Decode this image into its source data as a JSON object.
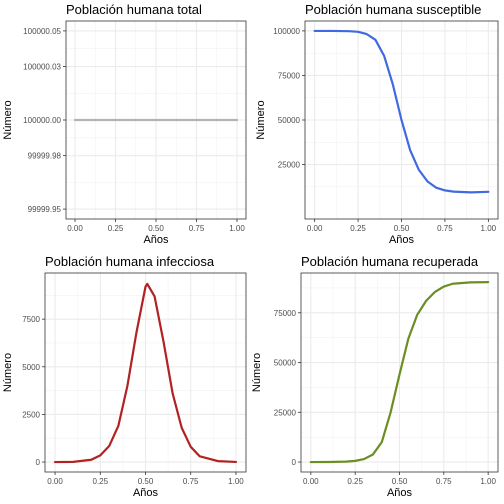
{
  "chart_data": [
    {
      "type": "line",
      "title": "Población humana total",
      "xlabel": "Años",
      "ylabel": "Número",
      "xlim": [
        0,
        1
      ],
      "ylim": [
        99999.95,
        100000.05
      ],
      "xticks": [
        "0.00",
        "0.25",
        "0.50",
        "0.75",
        "1.00"
      ],
      "yticks": [
        "99999.95",
        "99999.98",
        "100000.00",
        "100000.03",
        "100000.05"
      ],
      "color": "#b3b3b3",
      "grid": true,
      "series": [
        {
          "x": [
            0,
            0.25,
            0.5,
            0.75,
            1
          ],
          "y": [
            100000,
            100000,
            100000,
            100000,
            100000
          ]
        }
      ]
    },
    {
      "type": "line",
      "title": "Población humana susceptible",
      "xlabel": "Años",
      "ylabel": "Número",
      "xlim": [
        0,
        1
      ],
      "ylim": [
        0,
        100000
      ],
      "xticks": [
        "0.00",
        "0.25",
        "0.50",
        "0.75",
        "1.00"
      ],
      "yticks": [
        "25000",
        "50000",
        "75000",
        "100000"
      ],
      "color": "#4169e1",
      "grid": true,
      "series": [
        {
          "x": [
            0,
            0.1,
            0.2,
            0.25,
            0.3,
            0.35,
            0.4,
            0.45,
            0.5,
            0.55,
            0.6,
            0.65,
            0.7,
            0.75,
            0.8,
            0.9,
            1.0
          ],
          "y": [
            99990,
            99980,
            99850,
            99500,
            98200,
            95000,
            86000,
            70000,
            50000,
            33000,
            22000,
            15500,
            12000,
            10500,
            9800,
            9400,
            9700
          ]
        }
      ]
    },
    {
      "type": "line",
      "title": "Población humana infecciosa",
      "xlabel": "Años",
      "ylabel": "Número",
      "xlim": [
        0,
        1
      ],
      "ylim": [
        0,
        9400
      ],
      "xticks": [
        "0.00",
        "0.25",
        "0.50",
        "0.75",
        "1.00"
      ],
      "yticks": [
        "0",
        "2500",
        "5000",
        "7500"
      ],
      "color": "#b22222",
      "grid": true,
      "series": [
        {
          "x": [
            0,
            0.1,
            0.2,
            0.25,
            0.3,
            0.35,
            0.4,
            0.45,
            0.5,
            0.51,
            0.55,
            0.6,
            0.65,
            0.7,
            0.75,
            0.8,
            0.9,
            1.0
          ],
          "y": [
            0,
            10,
            120,
            350,
            850,
            1900,
            4000,
            6800,
            9200,
            9350,
            8700,
            6300,
            3600,
            1800,
            800,
            300,
            50,
            5
          ]
        }
      ]
    },
    {
      "type": "line",
      "title": "Población humana recuperada",
      "xlabel": "Años",
      "ylabel": "Número",
      "xlim": [
        0,
        1
      ],
      "ylim": [
        0,
        90000
      ],
      "xticks": [
        "0.00",
        "0.25",
        "0.50",
        "0.75",
        "1.00"
      ],
      "yticks": [
        "0",
        "25000",
        "50000",
        "75000"
      ],
      "color": "#6b8e23",
      "grid": true,
      "series": [
        {
          "x": [
            0,
            0.1,
            0.2,
            0.25,
            0.3,
            0.35,
            0.4,
            0.45,
            0.5,
            0.55,
            0.6,
            0.65,
            0.7,
            0.75,
            0.8,
            0.9,
            1.0
          ],
          "y": [
            0,
            20,
            200,
            600,
            1500,
            3800,
            10000,
            25000,
            44000,
            62000,
            74000,
            81000,
            85500,
            88200,
            89600,
            90300,
            90400
          ]
        }
      ]
    }
  ]
}
